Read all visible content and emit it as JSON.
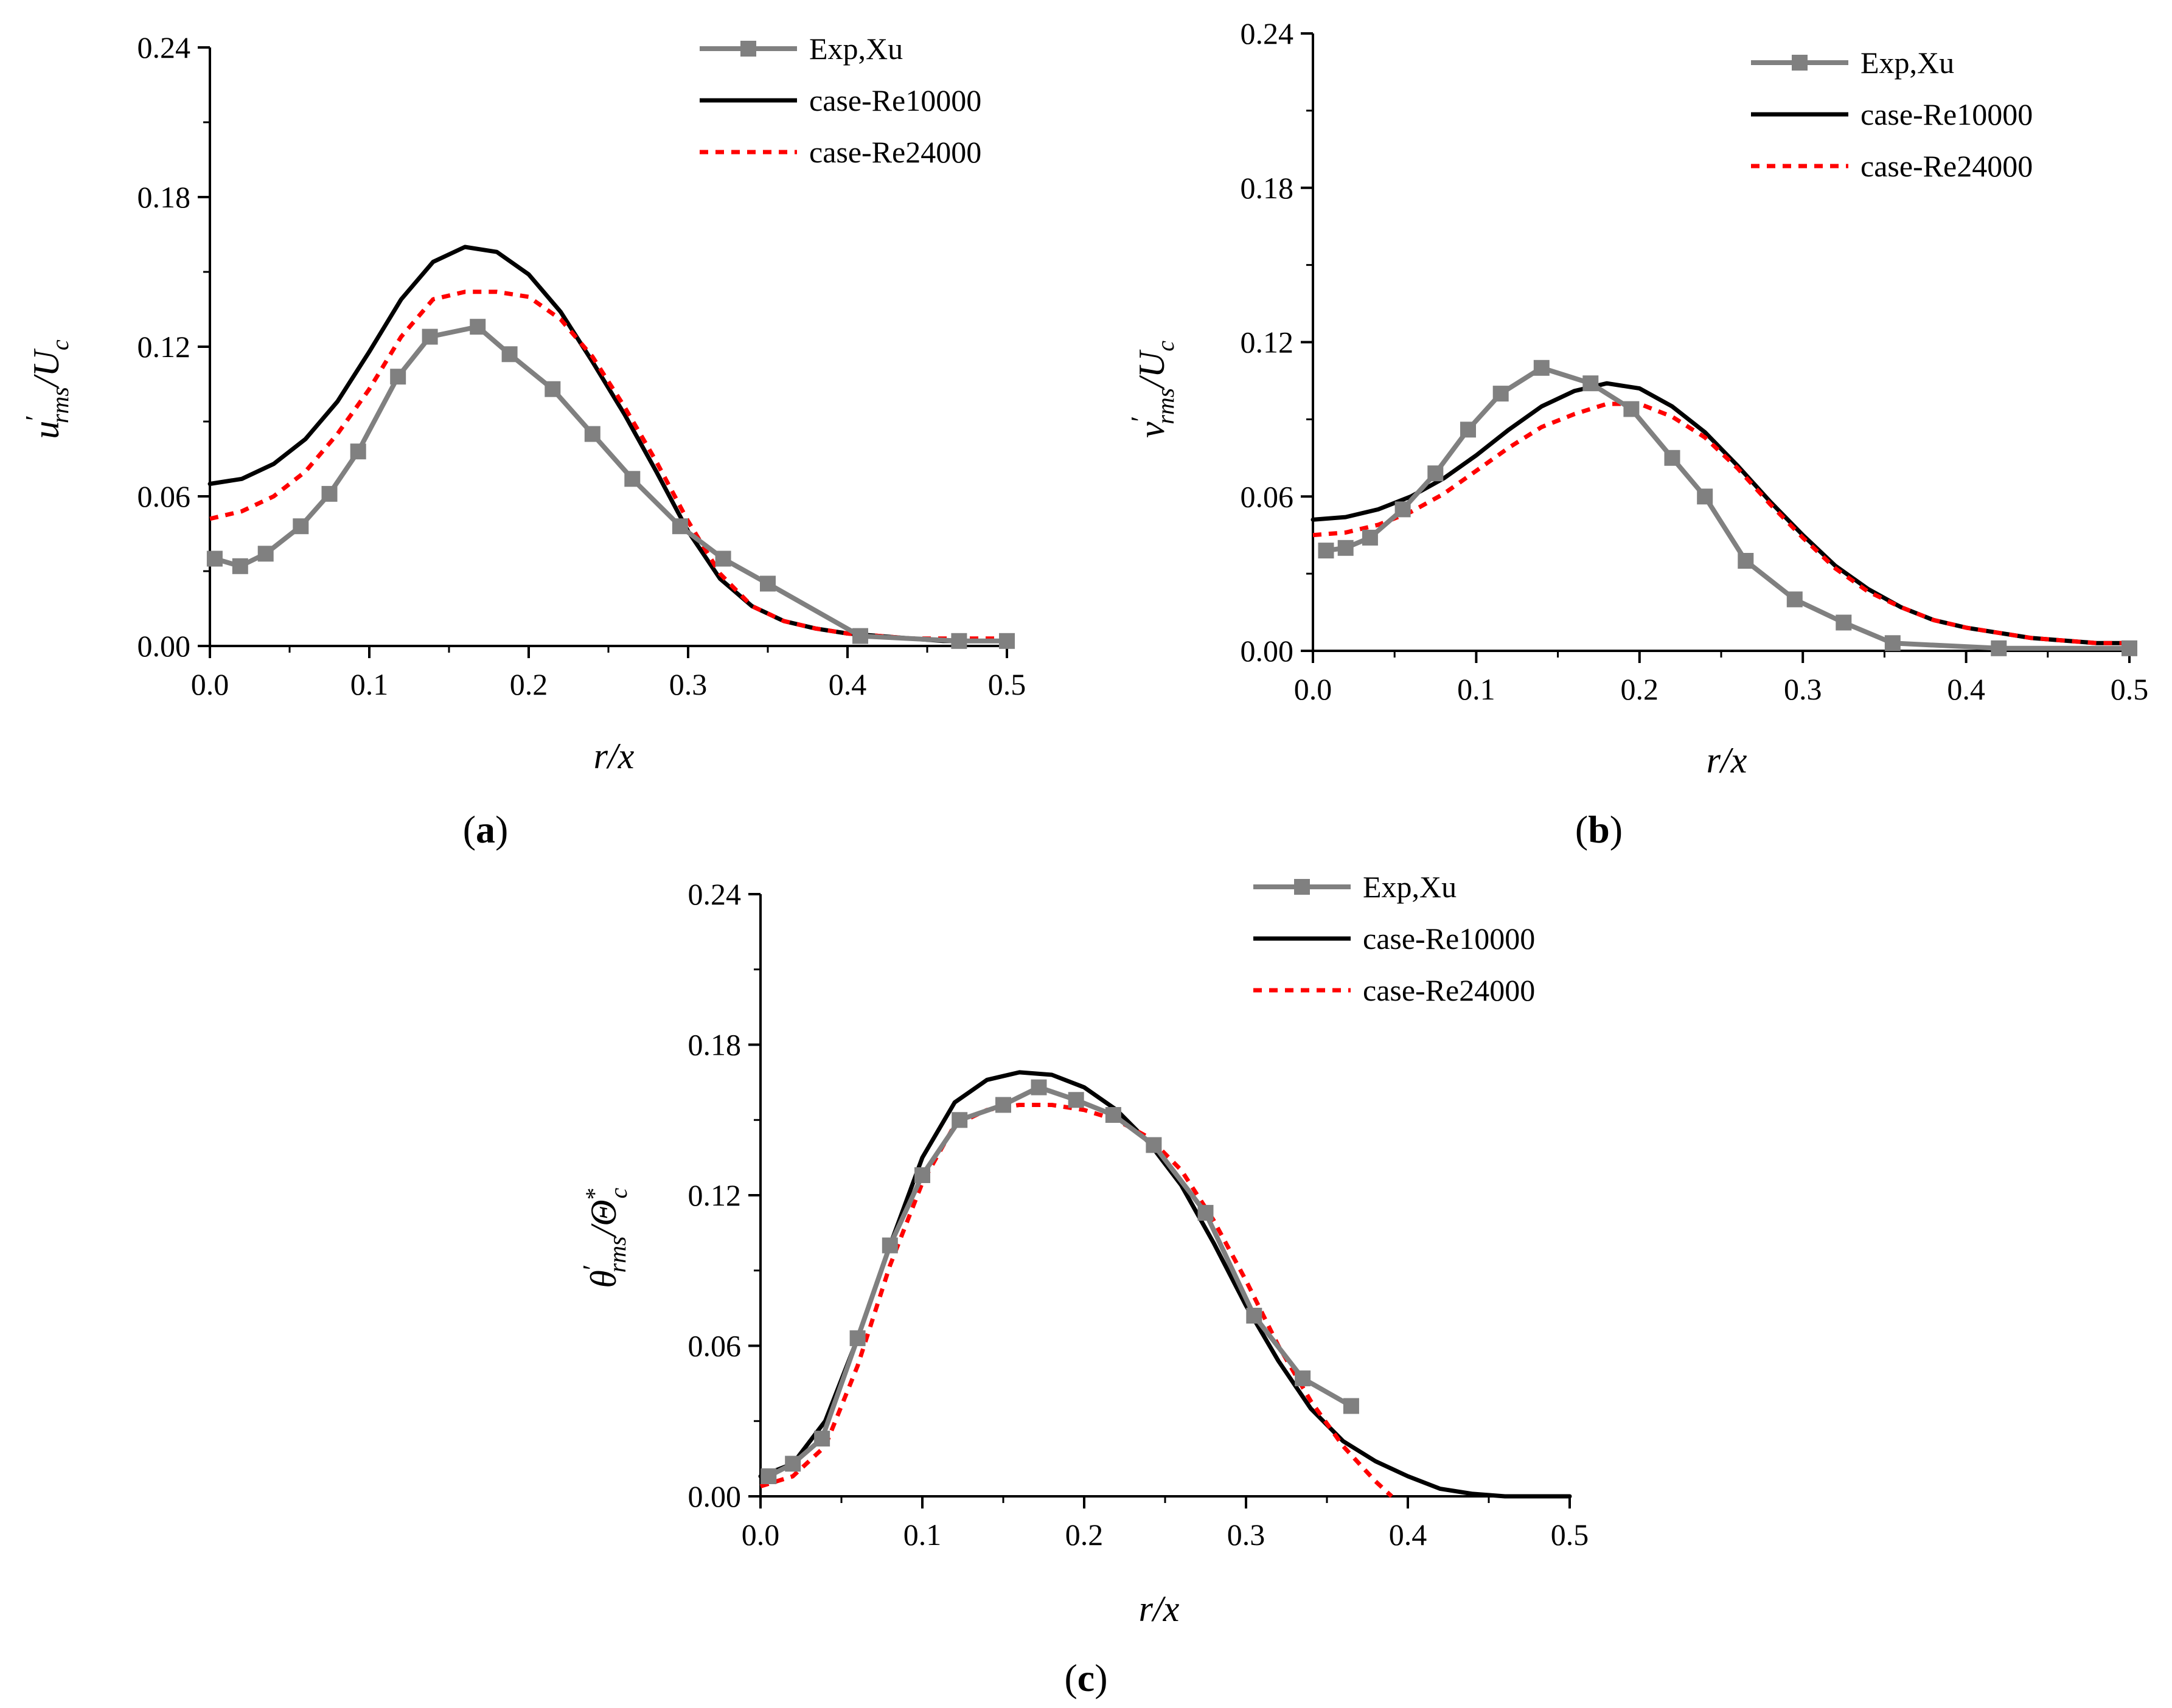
{
  "colors": {
    "exp": "#808080",
    "re10000": "#000000",
    "re24000": "#ff0000"
  },
  "chart_data": [
    {
      "panel": "a",
      "panel_label": {
        "open": "(",
        "letter": "a",
        "close": ")"
      },
      "type": "line",
      "xlabel": "r/x",
      "ylabel": {
        "base": "u",
        "prime": "′",
        "sub": "rms",
        "rest": "/U",
        "sub2": "c"
      },
      "xlim": [
        0,
        0.5
      ],
      "ylim": [
        0,
        0.24
      ],
      "xticks": [
        0,
        0.1,
        0.2,
        0.3,
        0.4,
        0.5
      ],
      "xtick_labels": [
        "0.0",
        "0.1",
        "0.2",
        "0.3",
        "0.4",
        "0.5"
      ],
      "yticks": [
        0,
        0.06,
        0.12,
        0.18,
        0.24
      ],
      "ytick_labels": [
        "0.00",
        "0.06",
        "0.12",
        "0.18",
        "0.24"
      ],
      "legend_position": "top-right",
      "series": [
        {
          "name": "Exp,Xu",
          "style": "exp",
          "markers": true,
          "x": [
            0.003,
            0.019,
            0.035,
            0.057,
            0.075,
            0.093,
            0.118,
            0.138,
            0.168,
            0.188,
            0.215,
            0.24,
            0.265,
            0.295,
            0.322,
            0.35,
            0.408,
            0.47,
            0.5
          ],
          "y": [
            0.035,
            0.032,
            0.037,
            0.048,
            0.061,
            0.078,
            0.108,
            0.124,
            0.128,
            0.117,
            0.103,
            0.085,
            0.067,
            0.048,
            0.035,
            0.025,
            0.004,
            0.002,
            0.002
          ]
        },
        {
          "name": "case-Re10000",
          "style": "re10000",
          "markers": false,
          "x": [
            0.0,
            0.02,
            0.04,
            0.06,
            0.08,
            0.1,
            0.12,
            0.14,
            0.16,
            0.18,
            0.2,
            0.22,
            0.24,
            0.26,
            0.28,
            0.3,
            0.32,
            0.34,
            0.36,
            0.38,
            0.4,
            0.42,
            0.44,
            0.46,
            0.48,
            0.5
          ],
          "y": [
            0.065,
            0.067,
            0.073,
            0.083,
            0.098,
            0.118,
            0.139,
            0.154,
            0.16,
            0.158,
            0.149,
            0.134,
            0.114,
            0.093,
            0.07,
            0.046,
            0.027,
            0.016,
            0.01,
            0.007,
            0.005,
            0.004,
            0.003,
            0.002,
            0.002,
            0.002
          ]
        },
        {
          "name": "case-Re24000",
          "style": "re24000",
          "markers": false,
          "x": [
            0.0,
            0.02,
            0.04,
            0.06,
            0.08,
            0.1,
            0.12,
            0.14,
            0.16,
            0.18,
            0.2,
            0.22,
            0.24,
            0.26,
            0.28,
            0.3,
            0.32,
            0.34,
            0.36,
            0.38,
            0.4,
            0.42,
            0.44,
            0.46,
            0.48,
            0.5
          ],
          "y": [
            0.051,
            0.054,
            0.06,
            0.07,
            0.085,
            0.103,
            0.124,
            0.139,
            0.142,
            0.142,
            0.14,
            0.131,
            0.116,
            0.096,
            0.074,
            0.05,
            0.029,
            0.016,
            0.01,
            0.007,
            0.005,
            0.004,
            0.003,
            0.003,
            0.003,
            0.003
          ]
        }
      ]
    },
    {
      "panel": "b",
      "panel_label": {
        "open": "(",
        "letter": "b",
        "close": ")"
      },
      "type": "line",
      "xlabel": "r/x",
      "ylabel": {
        "base": "v",
        "prime": "′",
        "sub": "rms",
        "rest": "/U",
        "sub2": "c"
      },
      "xlim": [
        0,
        0.5
      ],
      "ylim": [
        0,
        0.24
      ],
      "xticks": [
        0,
        0.1,
        0.2,
        0.3,
        0.4,
        0.5
      ],
      "xtick_labels": [
        "0.0",
        "0.1",
        "0.2",
        "0.3",
        "0.4",
        "0.5"
      ],
      "yticks": [
        0,
        0.06,
        0.12,
        0.18,
        0.24
      ],
      "ytick_labels": [
        "0.00",
        "0.06",
        "0.12",
        "0.18",
        "0.24"
      ],
      "legend_position": "top-right",
      "series": [
        {
          "name": "Exp,Xu",
          "style": "exp",
          "markers": true,
          "x": [
            0.008,
            0.02,
            0.035,
            0.055,
            0.075,
            0.095,
            0.115,
            0.14,
            0.17,
            0.195,
            0.22,
            0.24,
            0.265,
            0.295,
            0.325,
            0.355,
            0.42,
            0.5
          ],
          "y": [
            0.039,
            0.04,
            0.044,
            0.055,
            0.069,
            0.086,
            0.1,
            0.11,
            0.104,
            0.094,
            0.075,
            0.06,
            0.035,
            0.02,
            0.011,
            0.003,
            0.001,
            0.001
          ]
        },
        {
          "name": "case-Re10000",
          "style": "re10000",
          "markers": false,
          "x": [
            0.0,
            0.02,
            0.04,
            0.06,
            0.08,
            0.1,
            0.12,
            0.14,
            0.16,
            0.18,
            0.2,
            0.22,
            0.24,
            0.26,
            0.28,
            0.3,
            0.32,
            0.34,
            0.36,
            0.38,
            0.4,
            0.42,
            0.44,
            0.46,
            0.48,
            0.5
          ],
          "y": [
            0.051,
            0.052,
            0.055,
            0.06,
            0.067,
            0.076,
            0.086,
            0.095,
            0.101,
            0.104,
            0.102,
            0.095,
            0.085,
            0.072,
            0.058,
            0.045,
            0.033,
            0.024,
            0.017,
            0.012,
            0.009,
            0.007,
            0.005,
            0.004,
            0.003,
            0.003
          ]
        },
        {
          "name": "case-Re24000",
          "style": "re24000",
          "markers": false,
          "x": [
            0.0,
            0.02,
            0.04,
            0.06,
            0.08,
            0.1,
            0.12,
            0.14,
            0.16,
            0.18,
            0.2,
            0.22,
            0.24,
            0.26,
            0.28,
            0.3,
            0.32,
            0.34,
            0.36,
            0.38,
            0.4,
            0.42,
            0.44,
            0.46,
            0.48,
            0.5
          ],
          "y": [
            0.045,
            0.046,
            0.049,
            0.054,
            0.061,
            0.07,
            0.079,
            0.087,
            0.092,
            0.096,
            0.096,
            0.091,
            0.083,
            0.071,
            0.057,
            0.044,
            0.032,
            0.023,
            0.017,
            0.012,
            0.009,
            0.007,
            0.005,
            0.004,
            0.003,
            0.003
          ]
        }
      ]
    },
    {
      "panel": "c",
      "panel_label": {
        "open": "(",
        "letter": "c",
        "close": ")"
      },
      "type": "line",
      "xlabel": "r/x",
      "ylabel": {
        "base": "θ",
        "prime": "′",
        "sub": "rms",
        "rest": "/Θ",
        "sup2": "*",
        "sub2": "c"
      },
      "xlim": [
        0,
        0.5
      ],
      "ylim": [
        0,
        0.24
      ],
      "xticks": [
        0,
        0.1,
        0.2,
        0.3,
        0.4,
        0.5
      ],
      "xtick_labels": [
        "0.0",
        "0.1",
        "0.2",
        "0.3",
        "0.4",
        "0.5"
      ],
      "yticks": [
        0,
        0.06,
        0.12,
        0.18,
        0.24
      ],
      "ytick_labels": [
        "0.00",
        "0.06",
        "0.12",
        "0.18",
        "0.24"
      ],
      "legend_position": "top-right",
      "series": [
        {
          "name": "Exp,Xu",
          "style": "exp",
          "markers": true,
          "x": [
            0.005,
            0.02,
            0.038,
            0.06,
            0.08,
            0.1,
            0.123,
            0.15,
            0.172,
            0.195,
            0.218,
            0.243,
            0.275,
            0.305,
            0.335,
            0.365
          ],
          "y": [
            0.008,
            0.013,
            0.023,
            0.063,
            0.1,
            0.128,
            0.15,
            0.156,
            0.163,
            0.158,
            0.152,
            0.14,
            0.113,
            0.072,
            0.047,
            0.036
          ]
        },
        {
          "name": "case-Re10000",
          "style": "re10000",
          "markers": false,
          "x": [
            0.0,
            0.02,
            0.04,
            0.06,
            0.08,
            0.1,
            0.12,
            0.14,
            0.16,
            0.18,
            0.2,
            0.22,
            0.24,
            0.26,
            0.28,
            0.3,
            0.32,
            0.34,
            0.36,
            0.38,
            0.4,
            0.42,
            0.44,
            0.46,
            0.48,
            0.5
          ],
          "y": [
            0.008,
            0.013,
            0.03,
            0.063,
            0.1,
            0.135,
            0.157,
            0.166,
            0.169,
            0.168,
            0.163,
            0.154,
            0.141,
            0.124,
            0.101,
            0.076,
            0.054,
            0.035,
            0.022,
            0.014,
            0.008,
            0.003,
            0.001,
            0.0,
            0.0,
            0.0
          ]
        },
        {
          "name": "case-Re24000",
          "style": "re24000",
          "markers": false,
          "x": [
            0.0,
            0.02,
            0.04,
            0.06,
            0.08,
            0.1,
            0.12,
            0.14,
            0.16,
            0.18,
            0.2,
            0.22,
            0.24,
            0.26,
            0.28,
            0.3,
            0.32,
            0.34,
            0.36,
            0.38,
            0.39
          ],
          "y": [
            0.004,
            0.008,
            0.02,
            0.052,
            0.092,
            0.125,
            0.148,
            0.154,
            0.156,
            0.156,
            0.154,
            0.15,
            0.143,
            0.13,
            0.11,
            0.086,
            0.06,
            0.038,
            0.02,
            0.006,
            0.0
          ]
        }
      ]
    }
  ]
}
